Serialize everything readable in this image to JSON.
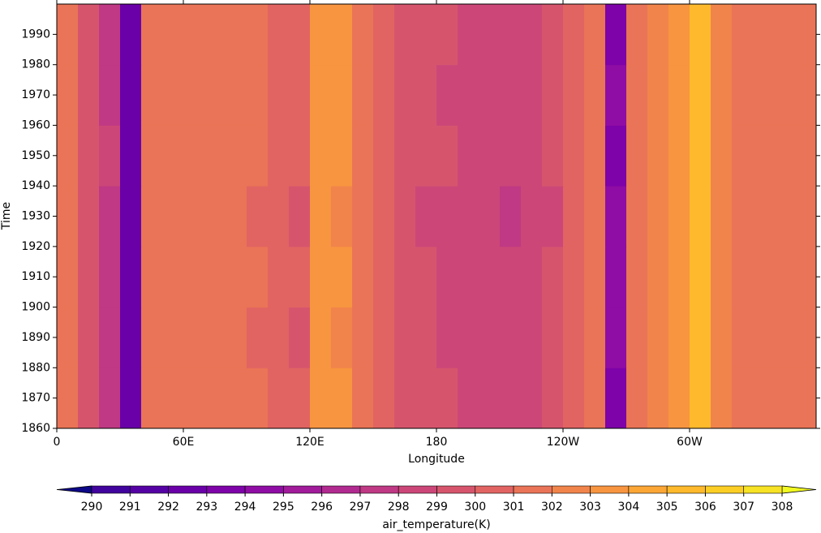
{
  "chart_data": {
    "type": "heatmap",
    "x_label": "Longitude",
    "y_label": "Time",
    "x": [
      0,
      10,
      20,
      30,
      40,
      50,
      60,
      70,
      80,
      90,
      100,
      110,
      120,
      130,
      140,
      150,
      160,
      170,
      180,
      190,
      200,
      210,
      220,
      230,
      240,
      250,
      260,
      270,
      280,
      290,
      300,
      310,
      320,
      330,
      340,
      350,
      360
    ],
    "y": [
      1860,
      1880,
      1900,
      1920,
      1940,
      1960,
      1980,
      2000
    ],
    "values": [
      [
        301.4,
        299.6,
        297.9,
        292.2,
        301.3,
        301.6,
        301.7,
        301.5,
        301.4,
        301.1,
        300.3,
        300.1,
        303.3,
        303.1,
        301.7,
        300.6,
        299.8,
        299.4,
        299.0,
        298.8,
        298.6,
        298.5,
        298.8,
        299.4,
        300.5,
        301.3,
        293.8,
        301.6,
        302.4,
        303.6,
        305.4,
        302.5,
        301.4,
        301.3,
        301.5,
        301.4
      ],
      [
        301.2,
        299.4,
        297.6,
        292.5,
        301.1,
        301.5,
        301.6,
        301.3,
        301.2,
        300.9,
        300.1,
        299.9,
        303.1,
        302.9,
        301.5,
        300.2,
        299.3,
        299.0,
        298.7,
        298.4,
        298.2,
        298.1,
        298.4,
        299.0,
        300.1,
        301.1,
        294.1,
        301.4,
        302.2,
        303.3,
        305.1,
        302.3,
        301.2,
        301.1,
        301.3,
        301.2
      ],
      [
        301.3,
        299.5,
        297.8,
        292.4,
        301.2,
        301.5,
        301.6,
        301.4,
        301.3,
        301.0,
        300.2,
        300.0,
        303.2,
        303.0,
        301.6,
        300.4,
        299.5,
        299.2,
        298.9,
        298.6,
        298.4,
        298.3,
        298.6,
        299.2,
        300.3,
        301.2,
        294.0,
        301.5,
        302.3,
        303.4,
        305.2,
        302.4,
        301.3,
        301.2,
        301.4,
        301.3
      ],
      [
        301.1,
        299.3,
        297.5,
        292.6,
        301.0,
        301.4,
        301.5,
        301.2,
        301.1,
        300.8,
        300.0,
        299.8,
        303.0,
        302.8,
        301.4,
        300.1,
        299.2,
        298.8,
        298.5,
        298.2,
        298.0,
        297.9,
        298.3,
        298.9,
        300.0,
        301.0,
        294.2,
        301.3,
        302.1,
        303.2,
        305.0,
        302.2,
        301.1,
        301.0,
        301.2,
        301.1
      ],
      [
        301.5,
        299.7,
        298.0,
        292.3,
        301.4,
        301.7,
        301.8,
        301.6,
        301.5,
        301.2,
        300.4,
        300.2,
        303.4,
        303.2,
        301.8,
        300.7,
        299.9,
        299.5,
        299.2,
        298.9,
        298.7,
        298.6,
        298.9,
        299.5,
        300.6,
        301.4,
        293.9,
        301.7,
        302.5,
        303.7,
        305.5,
        302.6,
        301.5,
        301.4,
        301.6,
        301.5
      ],
      [
        301.3,
        299.5,
        297.7,
        292.4,
        301.2,
        301.6,
        301.7,
        301.4,
        301.3,
        301.0,
        300.2,
        300.0,
        303.2,
        303.0,
        301.6,
        300.3,
        299.4,
        299.1,
        298.8,
        298.5,
        298.3,
        298.2,
        298.5,
        299.1,
        300.2,
        301.2,
        294.0,
        301.5,
        302.3,
        303.5,
        305.3,
        302.4,
        301.3,
        301.2,
        301.4,
        301.3
      ],
      [
        301.4,
        299.6,
        297.9,
        292.3,
        301.3,
        301.6,
        301.7,
        301.5,
        301.4,
        301.1,
        300.3,
        300.1,
        303.3,
        303.1,
        301.7,
        300.5,
        299.6,
        299.3,
        299.0,
        298.7,
        298.5,
        298.4,
        298.7,
        299.3,
        300.4,
        301.3,
        293.9,
        301.6,
        302.4,
        303.6,
        305.6,
        302.5,
        301.4,
        301.3,
        301.5,
        301.4
      ]
    ],
    "xlim": [
      0,
      360
    ],
    "ylim": [
      1860,
      2000
    ],
    "xticks": [
      0,
      {
        "value": 60,
        "label": "60E"
      },
      {
        "value": 120,
        "label": "120E"
      },
      180,
      {
        "value": 240,
        "label": "120W"
      },
      {
        "value": 300,
        "label": "60W"
      }
    ],
    "yticks": [
      1860,
      1870,
      1880,
      1890,
      1900,
      1910,
      1920,
      1930,
      1940,
      1950,
      1960,
      1970,
      1980,
      1990
    ],
    "colorbar": {
      "label": "air_temperature(K)",
      "levels": [
        290,
        291,
        292,
        293,
        294,
        295,
        296,
        297,
        298,
        299,
        300,
        301,
        302,
        303,
        304,
        305,
        306,
        307,
        308
      ],
      "under_color": "#0d0887",
      "over_color": "#f0f921",
      "colors": [
        "#41049d",
        "#5502a4",
        "#6a00a8",
        "#7e03a8",
        "#8f0da4",
        "#a11b9b",
        "#b12a90",
        "#bf3984",
        "#cc4778",
        "#d6556d",
        "#e16462",
        "#ea7457",
        "#f1844b",
        "#f89540",
        "#fca636",
        "#feba2c",
        "#fcce25",
        "#f7e225"
      ]
    }
  }
}
